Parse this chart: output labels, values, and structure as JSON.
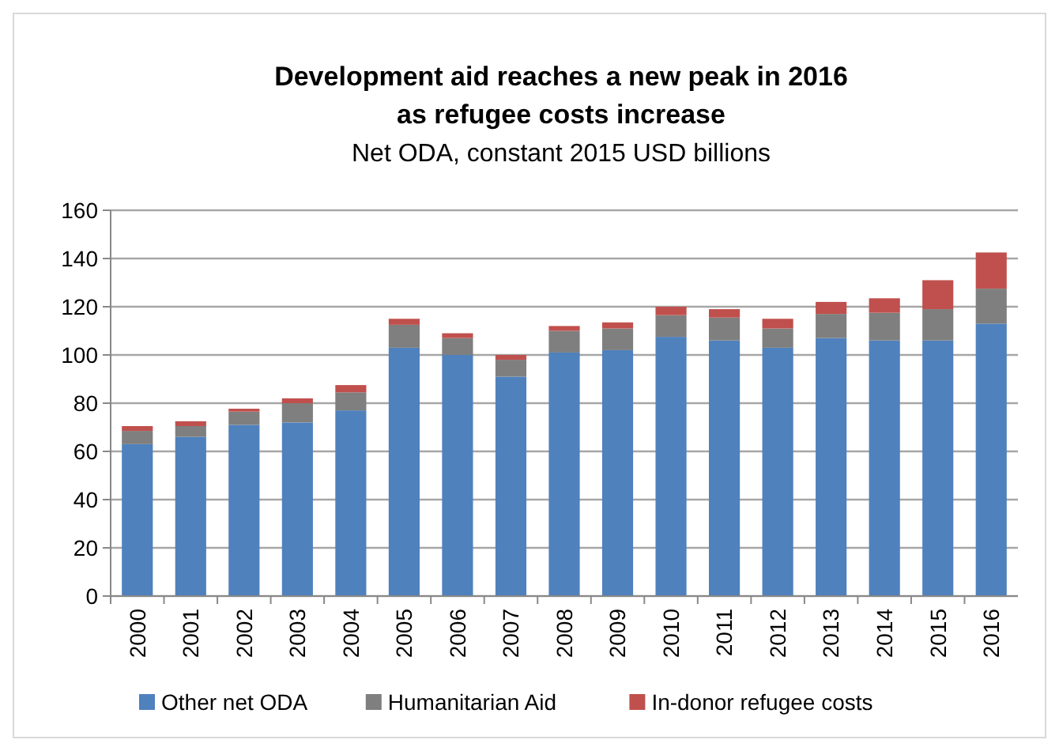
{
  "chart_data": {
    "type": "bar",
    "stacked": true,
    "title": "Development aid reaches a new peak in 2016 as refugee costs increase",
    "subtitle": "Net ODA, constant 2015 USD billions",
    "categories": [
      "2000",
      "2001",
      "2002",
      "2003",
      "2004",
      "2005",
      "2006",
      "2007",
      "2008",
      "2009",
      "2010",
      "2011",
      "2012",
      "2013",
      "2014",
      "2015",
      "2016"
    ],
    "series": [
      {
        "name": "Other net ODA",
        "color": "#4f81bd",
        "values": [
          63,
          66,
          71,
          72,
          77,
          103,
          100,
          91,
          101,
          102,
          107.5,
          106,
          103,
          107,
          106,
          106,
          113
        ]
      },
      {
        "name": "Humanitarian Aid",
        "color": "#7f7f7f",
        "values": [
          5.5,
          4.5,
          5.5,
          8,
          7.5,
          9.5,
          7,
          7,
          9,
          9,
          9,
          9.5,
          8,
          10,
          11.5,
          13,
          14.5
        ]
      },
      {
        "name": "In-donor refugee costs",
        "color": "#c0504d",
        "values": [
          2,
          2,
          1.2,
          2,
          3,
          2.5,
          2,
          2,
          2,
          2.5,
          3.5,
          3.5,
          4,
          5,
          6,
          12,
          15
        ]
      }
    ],
    "ylim": [
      0,
      160
    ],
    "yticks": [
      0,
      20,
      40,
      60,
      80,
      100,
      120,
      140,
      160
    ],
    "grid": "y",
    "legend": "bottom"
  }
}
